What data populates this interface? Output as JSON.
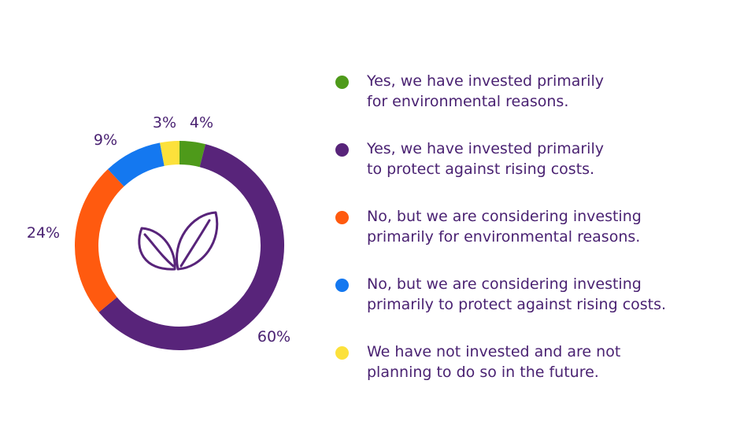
{
  "chart_data": {
    "type": "pie",
    "variant": "donut",
    "start_angle_deg": 0,
    "direction": "clockwise",
    "center_icon": "leaves-icon",
    "slices": [
      {
        "label": "Yes, we have invested primarily\nfor environmental reasons.",
        "value": 4,
        "display": "4%",
        "color": "#4e9a1a"
      },
      {
        "label": "Yes, we have invested primarily\nto protect against rising costs.",
        "value": 60,
        "display": "60%",
        "color": "#58247a"
      },
      {
        "label": "No, but we are considering investing\nprimarily for environmental reasons.",
        "value": 24,
        "display": "24%",
        "color": "#ff5a0f"
      },
      {
        "label": "No, but we are considering investing\nprimarily to protect against rising costs.",
        "value": 9,
        "display": "9%",
        "color": "#1478f0"
      },
      {
        "label": "We have not invested and are not\nplanning to do so in the future.",
        "value": 3,
        "display": "3%",
        "color": "#fce13b"
      }
    ],
    "legend_position": "right"
  }
}
